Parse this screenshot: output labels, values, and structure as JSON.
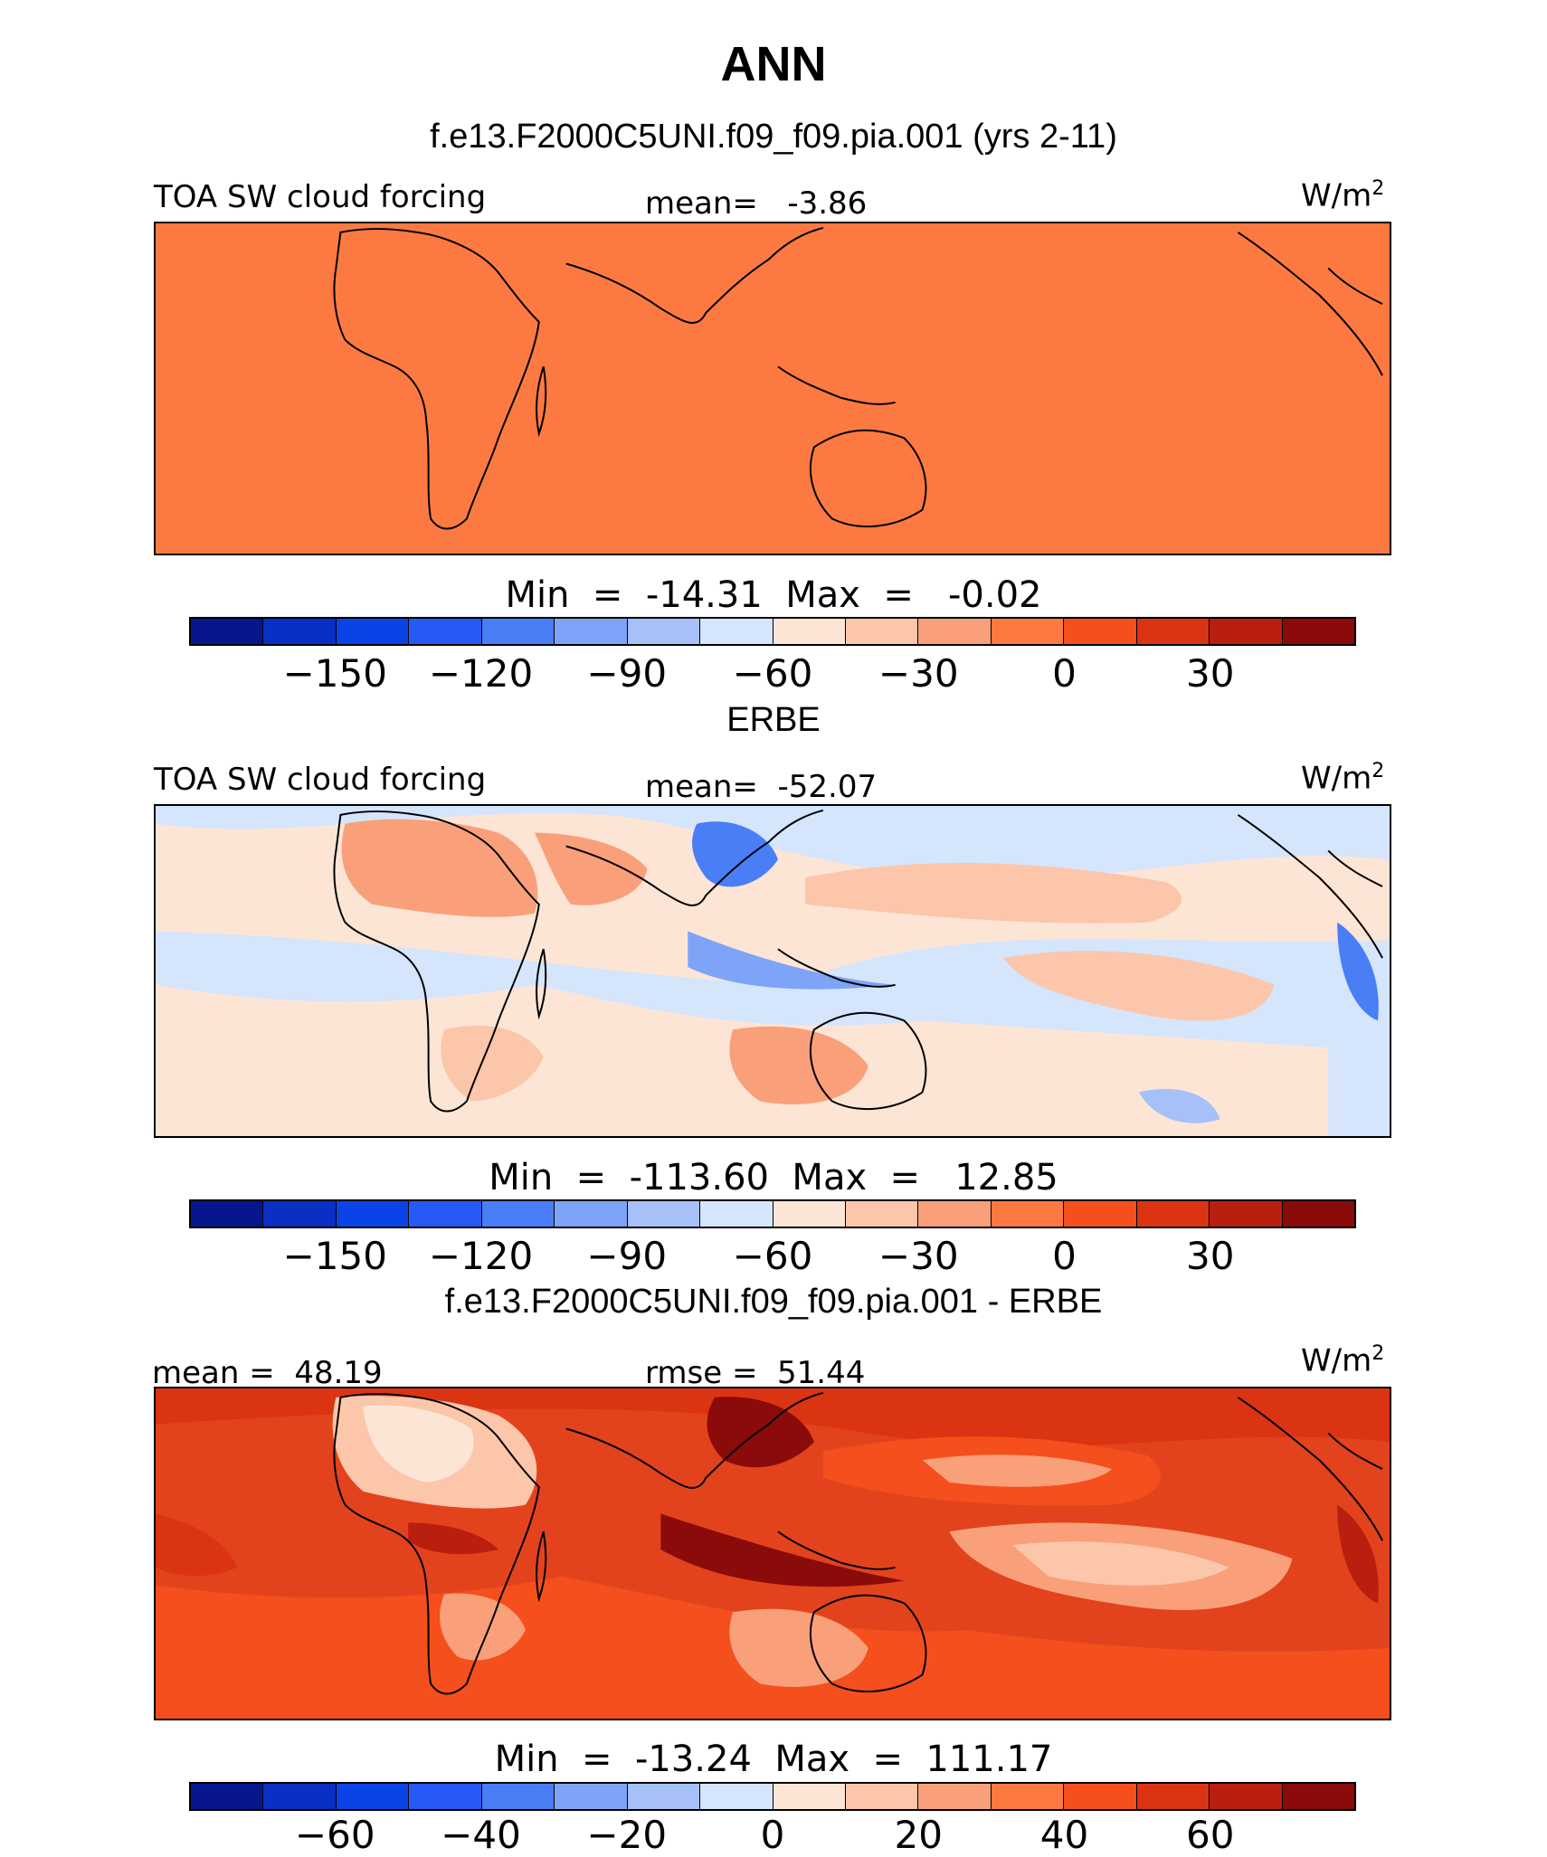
{
  "title": "ANN",
  "panels": [
    {
      "subtitle": "f.e13.F2000C5UNI.f09_f09.pia.001 (yrs 2-11)",
      "left_label": "TOA SW cloud forcing",
      "center_label": "mean=   -3.86",
      "unit": "W/m",
      "unit_sup": "2",
      "minmax": "Min  =  -14.31  Max  =   -0.02",
      "colorbar_ticks": [
        "-150",
        "-120",
        "-90",
        "-60",
        "-30",
        "0",
        "30"
      ],
      "field_color": "#fc7a41"
    },
    {
      "subtitle": "ERBE",
      "left_label": "TOA SW cloud forcing",
      "center_label": "mean=  -52.07",
      "unit": "W/m",
      "unit_sup": "2",
      "minmax": "Min  =  -113.60  Max  =   12.85",
      "colorbar_ticks": [
        "-150",
        "-120",
        "-90",
        "-60",
        "-30",
        "0",
        "30"
      ],
      "field_color": "#fdc8ae"
    },
    {
      "subtitle": "f.e13.F2000C5UNI.f09_f09.pia.001 - ERBE",
      "left_label": "mean =  48.19",
      "center_label": "rmse =  51.44",
      "unit": "W/m",
      "unit_sup": "2",
      "minmax": "Min  =  -13.24  Max  =  111.17",
      "colorbar_ticks": [
        "-60",
        "-40",
        "-20",
        "0",
        "20",
        "40",
        "60"
      ],
      "field_color": "#e2431c"
    }
  ],
  "colorbar_colors": [
    "#06168c",
    "#0a2fc4",
    "#0b44e6",
    "#2659f5",
    "#4a7ef7",
    "#7ea4f8",
    "#a6c1f8",
    "#d5e5fb",
    "#fde5d6",
    "#fcc6ab",
    "#f9a07a",
    "#fc7a41",
    "#f44f1c",
    "#db3412",
    "#b91f0e",
    "#8a0b09"
  ]
}
